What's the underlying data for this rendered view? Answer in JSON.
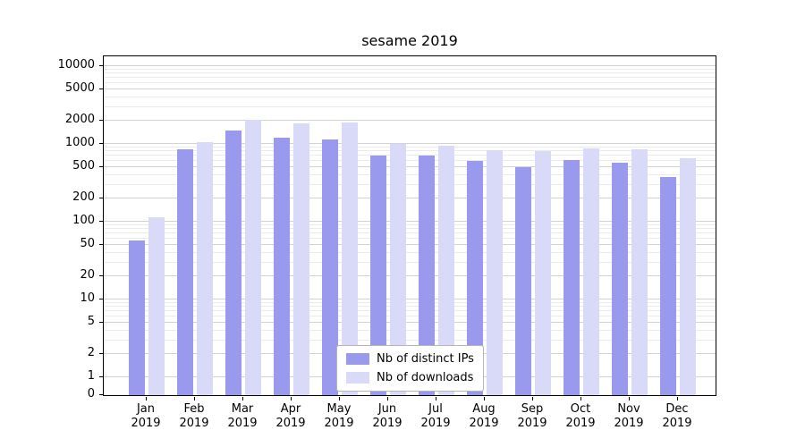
{
  "chart_data": {
    "type": "bar",
    "title": "sesame 2019",
    "categories": [
      "Jan",
      "Feb",
      "Mar",
      "Apr",
      "May",
      "Jun",
      "Jul",
      "Aug",
      "Sep",
      "Oct",
      "Nov",
      "Dec"
    ],
    "year_label": "2019",
    "series": [
      {
        "name": "Nb of distinct IPs",
        "color": "#9999ee",
        "values": [
          58,
          850,
          1500,
          1200,
          1150,
          700,
          700,
          600,
          500,
          620,
          580,
          380
        ]
      },
      {
        "name": "Nb of downloads",
        "color": "#d9d9f8",
        "values": [
          115,
          1060,
          2050,
          1850,
          1900,
          1000,
          950,
          830,
          800,
          870,
          850,
          650
        ]
      }
    ],
    "yticks": [
      0,
      1,
      2,
      5,
      10,
      20,
      50,
      100,
      200,
      500,
      1000,
      2000,
      5000,
      10000
    ],
    "yscale": "symlog",
    "ylim": [
      0,
      10000
    ],
    "grid": true,
    "legend_position": "lower center",
    "xlabel": "",
    "ylabel": ""
  }
}
